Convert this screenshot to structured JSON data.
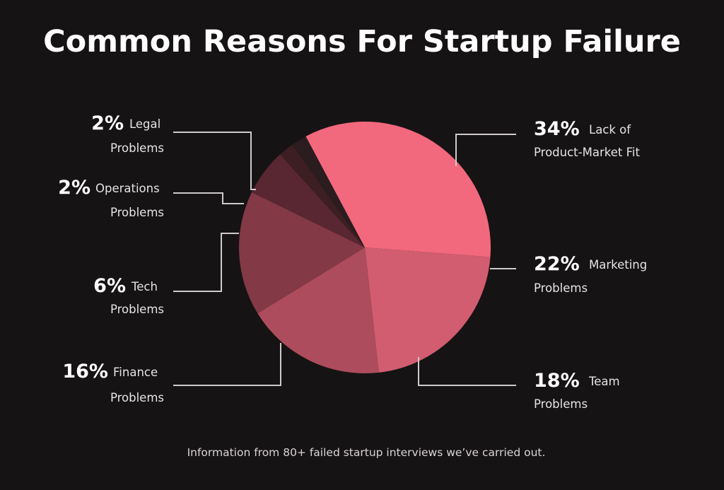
{
  "chart_data": {
    "type": "pie",
    "title": "Common Reasons For Startup Failure",
    "caption": "Information from 80+ failed startup interviews we’ve carried out.",
    "slices": [
      {
        "percent_label": "34%",
        "label_line1": "Lack of",
        "label_line2": "Product-Market Fit",
        "value": 34,
        "color": "#f2687d"
      },
      {
        "percent_label": "22%",
        "label_line1": "Marketing",
        "label_line2": "Problems",
        "value": 22,
        "color": "#d25d70"
      },
      {
        "percent_label": "18%",
        "label_line1": "Team",
        "label_line2": "Problems",
        "value": 18,
        "color": "#ad4c5c"
      },
      {
        "percent_label": "16%",
        "label_line1": "Finance",
        "label_line2": "Problems",
        "value": 16,
        "color": "#833946"
      },
      {
        "percent_label": "6%",
        "label_line1": "Tech",
        "label_line2": "Problems",
        "value": 6,
        "color": "#592731"
      },
      {
        "percent_label": "2%",
        "label_line1": "Operations",
        "label_line2": "Problems",
        "value": 2,
        "color": "#3c1e23"
      },
      {
        "percent_label": "2%",
        "label_line1": "Legal",
        "label_line2": "Problems",
        "value": 2,
        "color": "#2a1c1f"
      }
    ]
  }
}
